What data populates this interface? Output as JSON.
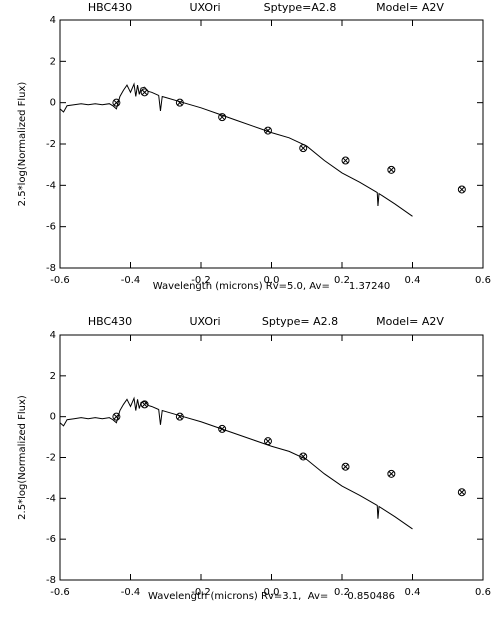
{
  "chart_data": [
    {
      "type": "line",
      "title": [
        "HBC430",
        "UXOri",
        "Sptype=A2.8",
        "Model= A2V"
      ],
      "x_label": "Wavelength (microns) Rv=5.0, Av=      1.37240",
      "y_label": "2.5*log(Normalized Flux)",
      "xlim": [
        -0.6,
        0.6
      ],
      "ylim": [
        -8,
        4
      ],
      "xticks": [
        -0.6,
        -0.4,
        -0.2,
        {
          "value": 0,
          "label": "0.0"
        },
        0.2,
        0.4,
        0.6
      ],
      "yticks": [
        -8,
        -6,
        -4,
        -2,
        0,
        2,
        4
      ],
      "series": [
        {
          "style": "line",
          "color": "#000000",
          "x": [
            -0.6,
            -0.59,
            -0.58,
            -0.56,
            -0.54,
            -0.52,
            -0.5,
            -0.48,
            -0.46,
            -0.45,
            -0.44,
            -0.43,
            -0.42,
            -0.41,
            -0.4,
            -0.39,
            -0.385,
            -0.38,
            -0.375,
            -0.37,
            -0.36,
            -0.35,
            -0.34,
            -0.32,
            -0.315,
            -0.31,
            -0.3,
            -0.25,
            -0.2,
            -0.15,
            -0.1,
            -0.05,
            0,
            0.05,
            0.1,
            0.15,
            0.2,
            0.25,
            0.3,
            0.302,
            0.305,
            0.35,
            0.4
          ],
          "values": [
            -0.3,
            -0.45,
            -0.15,
            -0.1,
            -0.05,
            -0.1,
            -0.05,
            -0.1,
            -0.05,
            -0.15,
            -0.3,
            0.3,
            0.6,
            0.85,
            0.5,
            0.9,
            0.3,
            0.85,
            0.4,
            0.7,
            0.75,
            0.55,
            0.5,
            0.35,
            -0.4,
            0.3,
            0.25,
            0,
            -0.25,
            -0.55,
            -0.85,
            -1.15,
            -1.45,
            -1.7,
            -2.1,
            -2.8,
            -3.4,
            -3.85,
            -4.35,
            -5.0,
            -4.4,
            -4.9,
            -5.5
          ]
        },
        {
          "style": "marker",
          "color": "#000000",
          "x": [
            -0.44,
            -0.36,
            -0.26,
            -0.14,
            -0.01,
            0.09,
            0.21,
            0.34,
            0.54
          ],
          "values": [
            0.0,
            0.5,
            0.0,
            -0.7,
            -1.35,
            -2.2,
            -2.8,
            -3.25,
            -4.2
          ]
        }
      ]
    },
    {
      "type": "line",
      "title": [
        "HBC430",
        "UXOri",
        "Sptype= A2.8",
        "Model= A2V"
      ],
      "x_label": "Wavelength (microns) Rv=3.1,  Av=      0.850486",
      "y_label": "2.5*log(Normalized Flux)",
      "xlim": [
        -0.6,
        0.6
      ],
      "ylim": [
        -8,
        4
      ],
      "xticks": [
        -0.6,
        -0.4,
        -0.2,
        {
          "value": 0,
          "label": "0.0"
        },
        0.2,
        0.4,
        0.6
      ],
      "yticks": [
        -8,
        -6,
        -4,
        -2,
        0,
        2,
        4
      ],
      "series": [
        {
          "style": "line",
          "color": "#000000",
          "x": [
            -0.6,
            -0.59,
            -0.58,
            -0.56,
            -0.54,
            -0.52,
            -0.5,
            -0.48,
            -0.46,
            -0.45,
            -0.44,
            -0.43,
            -0.42,
            -0.41,
            -0.4,
            -0.39,
            -0.385,
            -0.38,
            -0.375,
            -0.37,
            -0.36,
            -0.35,
            -0.34,
            -0.32,
            -0.315,
            -0.31,
            -0.3,
            -0.25,
            -0.2,
            -0.15,
            -0.1,
            -0.05,
            0,
            0.05,
            0.1,
            0.15,
            0.2,
            0.25,
            0.3,
            0.302,
            0.305,
            0.35,
            0.4
          ],
          "values": [
            -0.3,
            -0.45,
            -0.15,
            -0.1,
            -0.05,
            -0.1,
            -0.05,
            -0.1,
            -0.05,
            -0.15,
            -0.3,
            0.3,
            0.6,
            0.85,
            0.5,
            0.9,
            0.3,
            0.85,
            0.4,
            0.7,
            0.75,
            0.55,
            0.5,
            0.35,
            -0.4,
            0.3,
            0.25,
            0,
            -0.25,
            -0.55,
            -0.85,
            -1.15,
            -1.45,
            -1.7,
            -2.1,
            -2.8,
            -3.4,
            -3.85,
            -4.35,
            -5.0,
            -4.4,
            -4.9,
            -5.5
          ]
        },
        {
          "style": "marker",
          "color": "#000000",
          "x": [
            -0.44,
            -0.36,
            -0.26,
            -0.14,
            -0.01,
            0.09,
            0.21,
            0.34,
            0.54
          ],
          "values": [
            0.0,
            0.6,
            0.0,
            -0.6,
            -1.2,
            -1.95,
            -2.45,
            -2.8,
            -3.7
          ]
        }
      ]
    }
  ]
}
